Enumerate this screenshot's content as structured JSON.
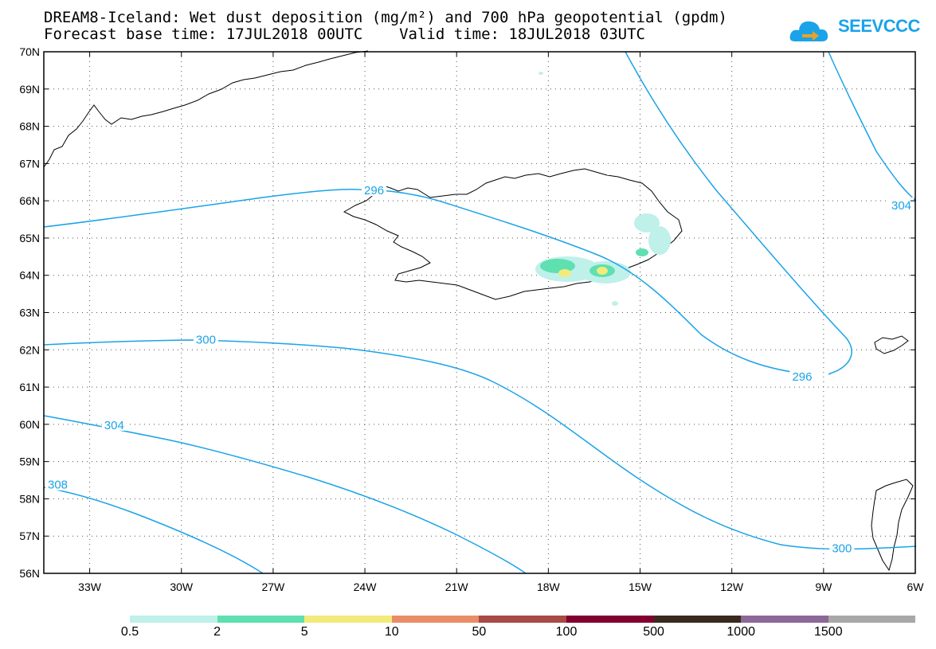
{
  "header": {
    "title": "DREAM8-Iceland: Wet dust deposition (mg/m²) and 700 hPa geopotential (gpdm)",
    "subtitle": "Forecast base time: 17JUL2018 00UTC    Valid time: 18JUL2018 03UTC"
  },
  "logo": {
    "text": "SEEVCCC",
    "icon": "cloud-arrow-icon",
    "color": "#1aa3e8"
  },
  "map": {
    "extent": {
      "lon": [
        -34.5,
        -6
      ],
      "lat": [
        56,
        70
      ]
    },
    "lat_labels": [
      "56N",
      "57N",
      "58N",
      "59N",
      "60N",
      "61N",
      "62N",
      "63N",
      "64N",
      "65N",
      "66N",
      "67N",
      "68N",
      "69N",
      "70N"
    ],
    "lon_labels": [
      "33W",
      "30W",
      "27W",
      "24W",
      "21W",
      "18W",
      "15W",
      "12W",
      "9W",
      "6W"
    ],
    "lon_values": [
      -33,
      -30,
      -27,
      -24,
      -21,
      -18,
      -15,
      -12,
      -9,
      -6
    ],
    "contour_color": "#1aa3e8",
    "contour_labels": [
      {
        "text": "296",
        "lon": -23.7,
        "lat": 66.3
      },
      {
        "text": "300",
        "lon": -29.2,
        "lat": 62.3
      },
      {
        "text": "304",
        "lon": -32.2,
        "lat": 60.0
      },
      {
        "text": "308",
        "lon": -34.3,
        "lat": 58.4
      },
      {
        "text": "296",
        "lon": -9.7,
        "lat": 61.3
      },
      {
        "text": "300",
        "lon": -8.4,
        "lat": 56.7
      },
      {
        "text": "304",
        "lon": -6.4,
        "lat": 65.9
      }
    ]
  },
  "legend": {
    "colors": [
      "#bff0ea",
      "#5ee0b0",
      "#f2eb7a",
      "#eb8c68",
      "#a84a46",
      "#820030",
      "#3a2a1e",
      "#8c6898",
      "#a8a8a8"
    ],
    "labels": [
      "0.5",
      "2",
      "5",
      "10",
      "50",
      "100",
      "500",
      "1000",
      "1500"
    ]
  }
}
